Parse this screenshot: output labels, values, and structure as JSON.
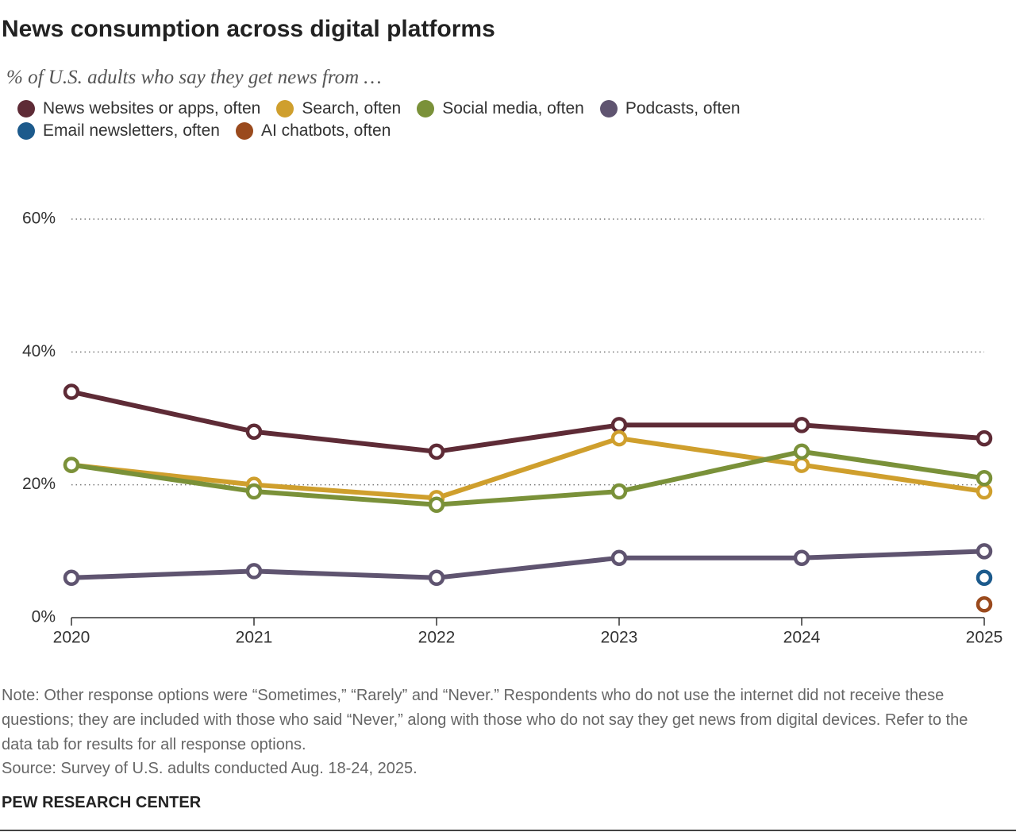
{
  "chart_data": {
    "type": "line",
    "title": "News consumption across digital platforms",
    "subtitle": "% of U.S. adults who say they get news from …",
    "x": [
      2020,
      2021,
      2022,
      2023,
      2024,
      2025
    ],
    "xlim": [
      2020,
      2025
    ],
    "xticks": [
      2020,
      2021,
      2022,
      2023,
      2024,
      2025
    ],
    "ylim": [
      0,
      60
    ],
    "yticks": [
      {
        "value": 0,
        "label": "0%"
      },
      {
        "value": 20,
        "label": "20%"
      },
      {
        "value": 40,
        "label": "40%"
      },
      {
        "value": 60,
        "label": "60%"
      }
    ],
    "grid": true,
    "series": [
      {
        "name": "News websites or apps, often",
        "color": "#5e2b36",
        "values": [
          34,
          28,
          25,
          29,
          29,
          27
        ]
      },
      {
        "name": "Search, often",
        "color": "#cf9f2d",
        "values": [
          23,
          20,
          18,
          27,
          23,
          19
        ]
      },
      {
        "name": "Social media, often",
        "color": "#7a9139",
        "values": [
          23,
          19,
          17,
          19,
          25,
          21
        ]
      },
      {
        "name": "Podcasts, often",
        "color": "#5f5470",
        "values": [
          6,
          7,
          6,
          9,
          9,
          10
        ]
      },
      {
        "name": "Email newsletters, often",
        "color": "#1c5a8c",
        "values": [
          null,
          null,
          null,
          null,
          null,
          6
        ]
      },
      {
        "name": "AI chatbots, often",
        "color": "#9a4a1d",
        "values": [
          null,
          null,
          null,
          null,
          null,
          2
        ]
      }
    ],
    "note": "Note: Other response options were “Sometimes,” “Rarely” and “Never.” Respondents who do not use the internet did not receive these questions; they are included with those who said “Never,” along with those who do not say they get news from digital devices. Refer to the data tab for results for all response options.",
    "source": "Source: Survey of U.S. adults conducted Aug. 18-24, 2025.",
    "credit": "PEW RESEARCH CENTER"
  }
}
